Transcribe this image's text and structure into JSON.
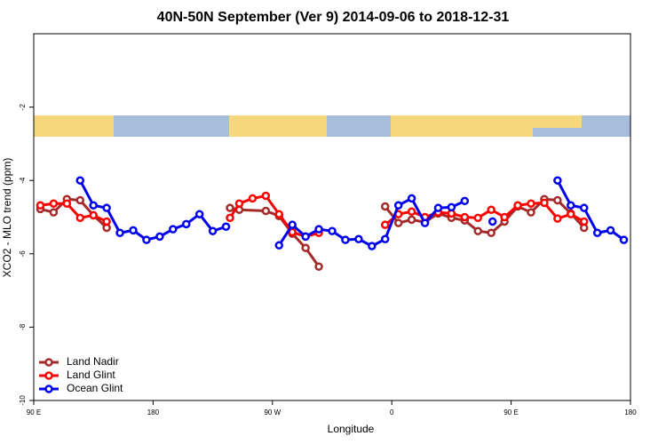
{
  "chart_data": {
    "type": "line",
    "title": "40N-50N September (Ver 9)   2014-09-06 to 2018-12-31",
    "x_label": "Longitude",
    "y_label": "XCO2 - MLO trend (ppm)",
    "xlim": [
      90,
      540
    ],
    "xticks": [
      {
        "value": 90,
        "label": "90 E"
      },
      180,
      {
        "value": 270,
        "label": "90 W"
      },
      {
        "value": 360,
        "label": "0"
      },
      {
        "value": 450,
        "label": "90 E"
      },
      {
        "value": 540,
        "label": "180"
      }
    ],
    "ylim": [
      -10,
      0
    ],
    "yticks": [
      -2,
      -4,
      -6,
      -8,
      -10
    ],
    "legend": "lower left",
    "series": [
      {
        "name": "Land Nadir",
        "color": "#a52a2a",
        "x": [
          95,
          105,
          115,
          125,
          135,
          145,
          190,
          238,
          245,
          265,
          275,
          285,
          295,
          305,
          330,
          355,
          365,
          375,
          385,
          395,
          405,
          415,
          425,
          435,
          445,
          455,
          465,
          475,
          485,
          495,
          505
        ],
        "values": [
          -4.78,
          -4.87,
          -4.51,
          -4.54,
          -4.95,
          -5.29,
          null,
          -4.75,
          -4.8,
          -4.83,
          -4.97,
          -5.45,
          -5.84,
          -6.35,
          null,
          -4.71,
          -5.16,
          -5.07,
          -5.14,
          -4.9,
          -5.02,
          -5.09,
          -5.38,
          -5.43,
          -5.12,
          -4.71,
          -4.87,
          -4.51,
          -4.54,
          -4.9,
          -5.29
        ]
      },
      {
        "name": "Land Glint",
        "color": "#ff0000",
        "x": [
          95,
          105,
          115,
          125,
          135,
          145,
          190,
          238,
          245,
          255,
          265,
          275,
          285,
          295,
          305,
          330,
          355,
          365,
          375,
          385,
          395,
          405,
          415,
          425,
          435,
          445,
          455,
          465,
          475,
          485,
          495,
          505
        ],
        "values": [
          -4.68,
          -4.63,
          -4.63,
          -5.02,
          -4.95,
          -5.12,
          null,
          -5.02,
          -4.63,
          -4.49,
          -4.42,
          -4.92,
          -5.41,
          -5.53,
          -5.43,
          null,
          -5.21,
          -4.92,
          -4.85,
          -5.0,
          -4.87,
          -4.9,
          -5.0,
          -5.02,
          -4.8,
          -5.0,
          -4.68,
          -4.63,
          -4.61,
          -5.04,
          -4.92,
          -5.12
        ]
      },
      {
        "name": "Ocean Glint",
        "color": "#0000ee",
        "x": [
          125,
          135,
          145,
          155,
          165,
          175,
          185,
          195,
          205,
          215,
          225,
          235,
          255,
          275,
          285,
          295,
          305,
          315,
          325,
          335,
          345,
          355,
          365,
          375,
          385,
          395,
          405,
          415,
          425,
          436,
          460,
          485,
          495,
          505,
          515,
          525,
          535
        ],
        "values": [
          -4.0,
          -4.68,
          -4.75,
          -5.43,
          -5.36,
          -5.62,
          -5.53,
          -5.33,
          -5.19,
          -4.92,
          -5.38,
          -5.26,
          null,
          -5.77,
          -5.21,
          -5.53,
          -5.33,
          -5.38,
          -5.62,
          -5.6,
          -5.79,
          -5.6,
          -4.68,
          -4.49,
          -5.16,
          -4.75,
          -4.73,
          -4.56,
          null,
          -5.12,
          null,
          -4.0,
          -4.68,
          -4.75,
          -5.43,
          -5.36,
          -5.62
        ]
      }
    ]
  }
}
